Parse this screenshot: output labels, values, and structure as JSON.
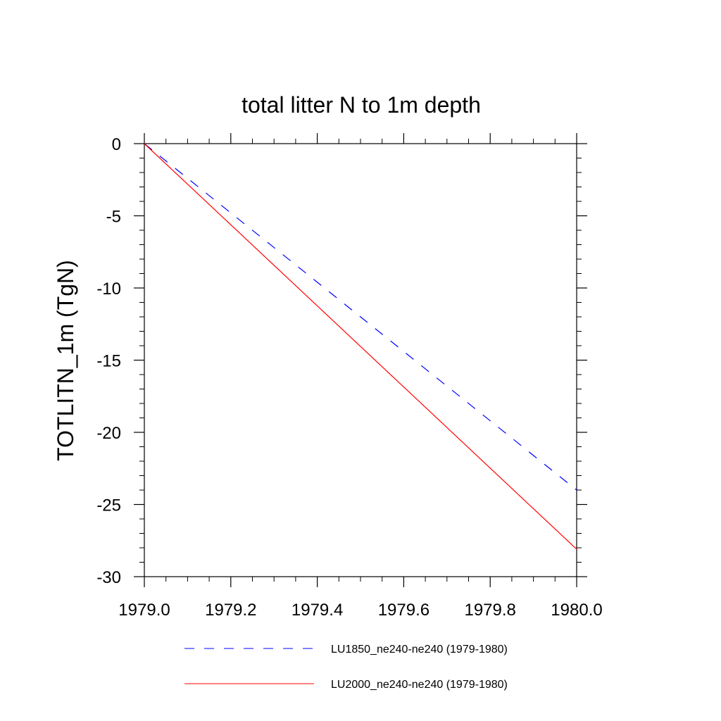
{
  "chart_data": {
    "type": "line",
    "title": "total litter N to 1m depth",
    "xlabel": "",
    "ylabel": "TOTLITN_1m  (TgN)",
    "xlim": [
      1979.0,
      1980.0
    ],
    "ylim": [
      -30,
      0
    ],
    "x_ticks": [
      "1979.0",
      "1979.2",
      "1979.4",
      "1979.6",
      "1979.8",
      "1980.0"
    ],
    "y_ticks": [
      "0",
      "-5",
      "-10",
      "-15",
      "-20",
      "-25",
      "-30"
    ],
    "grid": false,
    "legend_position": "bottom",
    "series": [
      {
        "name": "LU1850_ne240-ne240 (1979-1980)",
        "color": "#0000ff",
        "style": "dashed",
        "x": [
          1979.0,
          1980.0
        ],
        "y": [
          0,
          -24
        ]
      },
      {
        "name": "LU2000_ne240-ne240 (1979-1980)",
        "color": "#ff0000",
        "style": "solid",
        "x": [
          1979.0,
          1980.0
        ],
        "y": [
          0,
          -28.1
        ]
      }
    ]
  }
}
